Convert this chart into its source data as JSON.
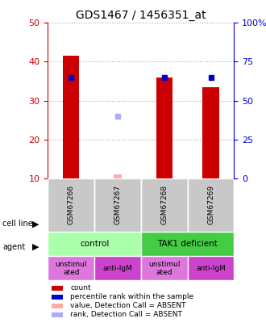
{
  "title": "GDS1467 / 1456351_at",
  "samples": [
    "GSM67266",
    "GSM67267",
    "GSM67268",
    "GSM67269"
  ],
  "bar_values": [
    41.5,
    null,
    36.0,
    33.5
  ],
  "bar_colors": [
    "#cc0000",
    "#cc0000",
    "#cc0000",
    "#cc0000"
  ],
  "percentile_values": [
    36,
    null,
    36,
    36
  ],
  "percentile_colors": [
    "#0000cc",
    "#0000cc",
    "#0000cc",
    "#0000cc"
  ],
  "absent_bar_value": 1.0,
  "absent_bar_color": "#ffaaaa",
  "absent_rank_value": 26,
  "absent_rank_color": "#aaaaff",
  "absent_sample_idx": 1,
  "ylim_left": [
    10,
    50
  ],
  "ylim_right": [
    0,
    100
  ],
  "yticks_left": [
    10,
    20,
    30,
    40,
    50
  ],
  "yticks_right": [
    0,
    25,
    50,
    75,
    100
  ],
  "ytick_labels_left": [
    "10",
    "20",
    "30",
    "40",
    "50"
  ],
  "ytick_labels_right": [
    "0",
    "25",
    "50",
    "75",
    "100%"
  ],
  "cell_line_labels": [
    [
      "control",
      2
    ],
    [
      "TAK1 deficient",
      2
    ]
  ],
  "cell_line_colors": [
    "#aaffaa",
    "#44dd44"
  ],
  "agent_labels": [
    "unstimul\nated",
    "anti-IgM",
    "unstimul\nated",
    "anti-IgM"
  ],
  "agent_colors": [
    "#dd44dd",
    "#dd44dd",
    "#dd44dd",
    "#dd44dd"
  ],
  "agent_bg_colors": [
    "#ee88ee",
    "#ee44ee",
    "#ee88ee",
    "#ee44ee"
  ],
  "grid_color": "#aaaaaa",
  "plot_bg": "#f0f0f0",
  "sample_bg": "#c8c8c8",
  "left_axis_color": "#cc0000",
  "right_axis_color": "#0000cc"
}
